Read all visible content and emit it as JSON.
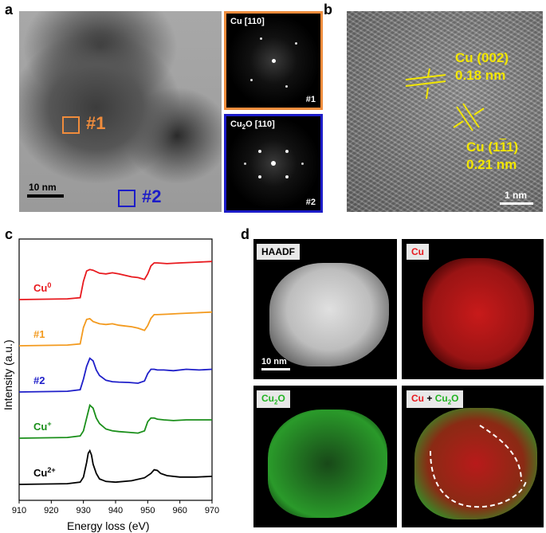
{
  "panel_labels": {
    "a": "a",
    "b": "b",
    "c": "c",
    "d": "d"
  },
  "panel_a": {
    "scale": "10 nm",
    "region1": "#1",
    "region2": "#2",
    "fft1": {
      "title": "Cu [110]",
      "label": "#1",
      "border": "#f08c3c"
    },
    "fft2": {
      "title_pre": "Cu",
      "title_sub": "2",
      "title_post": "O [110]",
      "label": "#2",
      "border": "#1c1cc8"
    }
  },
  "panel_b": {
    "plane1_name": "Cu (002)",
    "plane1_d": "0.18 nm",
    "plane2_name_pre": "Cu (1",
    "plane2_name_bar": "1",
    "plane2_name_mid": "",
    "plane2_name_post": "1)",
    "plane2_d": "0.21 nm",
    "scale": "1 nm",
    "annot_color": "#f2e600"
  },
  "chart_data": {
    "type": "line",
    "xlabel": "Energy loss (eV)",
    "ylabel": "Intensity (a.u.)",
    "xlim": [
      910,
      970
    ],
    "xticks": [
      910,
      920,
      930,
      940,
      950,
      960,
      970
    ],
    "series": [
      {
        "name": "Cu0",
        "label_main": "Cu",
        "label_sup": "0",
        "color": "#e8191e",
        "offset": 4,
        "x": [
          910,
          925,
          929,
          930,
          931,
          932,
          933,
          935,
          937,
          939,
          941,
          943,
          945,
          947,
          949,
          950,
          951,
          952,
          953,
          956,
          960,
          965,
          970
        ],
        "y": [
          0,
          0.02,
          0.05,
          0.5,
          0.78,
          0.82,
          0.8,
          0.72,
          0.7,
          0.73,
          0.7,
          0.66,
          0.62,
          0.6,
          0.55,
          0.7,
          0.92,
          1.0,
          1.0,
          0.98,
          1.0,
          1.02,
          1.04
        ]
      },
      {
        "name": "#1",
        "label_main": "#1",
        "label_sup": "",
        "color": "#f39a1e",
        "offset": 3,
        "x": [
          910,
          925,
          929,
          930,
          931,
          932,
          933,
          935,
          937,
          939,
          941,
          943,
          945,
          947,
          949,
          950,
          951,
          952,
          953,
          956,
          960,
          965,
          970
        ],
        "y": [
          0,
          0.02,
          0.05,
          0.5,
          0.72,
          0.74,
          0.66,
          0.6,
          0.58,
          0.6,
          0.56,
          0.54,
          0.52,
          0.48,
          0.42,
          0.55,
          0.75,
          0.85,
          0.85,
          0.86,
          0.88,
          0.9,
          0.92
        ]
      },
      {
        "name": "#2",
        "label_main": "#2",
        "label_sup": "",
        "color": "#1f1fc9",
        "offset": 2,
        "x": [
          910,
          925,
          929,
          930,
          931,
          932,
          933,
          934,
          935,
          937,
          939,
          941,
          944,
          947,
          949,
          950,
          951,
          952,
          953,
          955,
          958,
          962,
          966,
          970
        ],
        "y": [
          0,
          0.02,
          0.06,
          0.35,
          0.7,
          0.92,
          0.85,
          0.6,
          0.45,
          0.32,
          0.28,
          0.27,
          0.26,
          0.24,
          0.3,
          0.5,
          0.62,
          0.62,
          0.6,
          0.6,
          0.58,
          0.62,
          0.6,
          0.62
        ]
      },
      {
        "name": "Cu+",
        "label_main": "Cu",
        "label_sup": "+",
        "color": "#1a8f1a",
        "offset": 1,
        "x": [
          910,
          925,
          929,
          930,
          931,
          932,
          933,
          934,
          935,
          937,
          939,
          941,
          944,
          947,
          949,
          950,
          951,
          952,
          953,
          955,
          958,
          962,
          966,
          970
        ],
        "y": [
          0,
          0.02,
          0.06,
          0.2,
          0.55,
          0.9,
          0.82,
          0.55,
          0.4,
          0.25,
          0.2,
          0.18,
          0.16,
          0.14,
          0.2,
          0.45,
          0.55,
          0.55,
          0.52,
          0.5,
          0.48,
          0.5,
          0.5,
          0.5
        ]
      },
      {
        "name": "Cu2+",
        "label_main": "Cu",
        "label_sup": "2+",
        "color": "#000000",
        "offset": 0,
        "x": [
          910,
          925,
          929,
          930,
          931,
          931.5,
          932,
          932.5,
          933,
          934,
          935,
          937,
          940,
          945,
          949,
          951,
          952,
          953,
          954,
          956,
          960,
          965,
          970
        ],
        "y": [
          0,
          0.02,
          0.06,
          0.2,
          0.6,
          0.85,
          0.92,
          0.8,
          0.55,
          0.3,
          0.15,
          0.08,
          0.06,
          0.1,
          0.18,
          0.3,
          0.4,
          0.38,
          0.3,
          0.24,
          0.2,
          0.2,
          0.22
        ]
      }
    ]
  },
  "panel_d": {
    "haadf": "HAADF",
    "cu": "Cu",
    "cu2o_pre": "Cu",
    "cu2o_sub": "2",
    "cu2o_post": "O",
    "overlay_cu": "Cu",
    "overlay_plus": " + ",
    "overlay_cu2o_pre": "Cu",
    "overlay_cu2o_sub": "2",
    "overlay_cu2o_post": "O",
    "scale": "10 nm",
    "cu_color": "#e8191e",
    "cu2o_color": "#22b422"
  }
}
